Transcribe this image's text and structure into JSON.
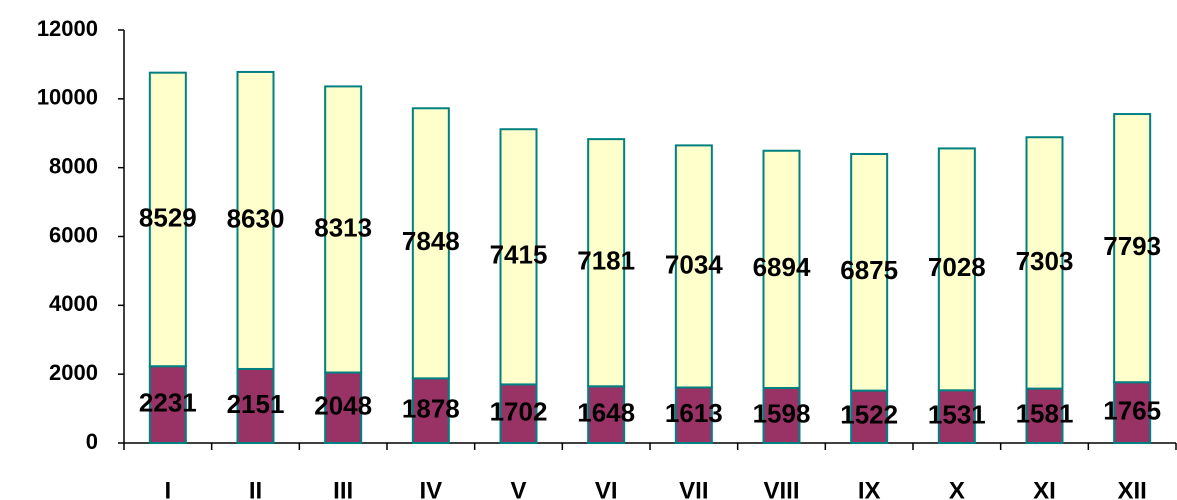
{
  "chart_data": {
    "type": "stacked_bar",
    "categories": [
      "I",
      "II",
      "III",
      "IV",
      "V",
      "VI",
      "VII",
      "VIII",
      "IX",
      "X",
      "XI",
      "XII"
    ],
    "series": [
      {
        "color": "#993366",
        "values": [
          2231,
          2151,
          2048,
          1878,
          1702,
          1648,
          1613,
          1598,
          1522,
          1531,
          1581,
          1765
        ]
      },
      {
        "color": "#ffffcc",
        "values": [
          8529,
          8630,
          8313,
          7848,
          7415,
          7181,
          7034,
          6894,
          6875,
          7028,
          7303,
          7793
        ]
      }
    ],
    "bar_edge_color": "#008080",
    "ylim": [
      0,
      12000
    ],
    "yticks": [
      0,
      2000,
      4000,
      6000,
      8000,
      10000,
      12000
    ],
    "grid": false
  }
}
